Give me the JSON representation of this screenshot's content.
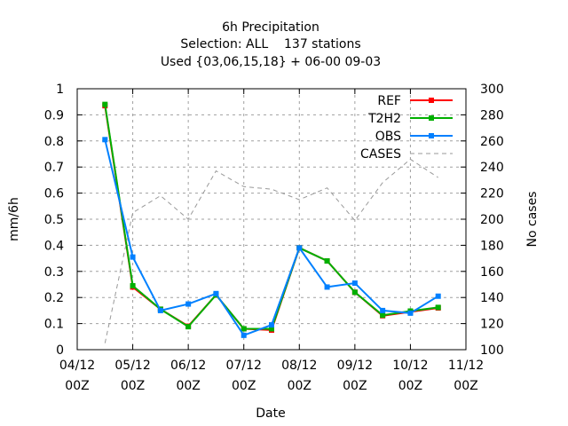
{
  "chart_data": {
    "type": "line",
    "title": [
      "6h Precipitation",
      "Selection: ALL    137 stations",
      "Used {03,06,15,18} + 06-00 09-03"
    ],
    "xlabel": "Date",
    "ylabel": "mm/6h",
    "y2label": "No cases",
    "xlim": [
      0,
      7
    ],
    "ylim": [
      0,
      1
    ],
    "y2lim": [
      100,
      300
    ],
    "grid": true,
    "legend_position": "top-right",
    "x_ticks": [
      {
        "x": 0,
        "line1": "04/12",
        "line2": "00Z"
      },
      {
        "x": 1,
        "line1": "05/12",
        "line2": "00Z"
      },
      {
        "x": 2,
        "line1": "06/12",
        "line2": "00Z"
      },
      {
        "x": 3,
        "line1": "07/12",
        "line2": "00Z"
      },
      {
        "x": 4,
        "line1": "08/12",
        "line2": "00Z"
      },
      {
        "x": 5,
        "line1": "09/12",
        "line2": "00Z"
      },
      {
        "x": 6,
        "line1": "10/12",
        "line2": "00Z"
      },
      {
        "x": 7,
        "line1": "11/12",
        "line2": "00Z"
      }
    ],
    "y_ticks": [
      "0",
      "0.1",
      "0.2",
      "0.3",
      "0.4",
      "0.5",
      "0.6",
      "0.7",
      "0.8",
      "0.9",
      "1"
    ],
    "y2_ticks": [
      "100",
      "120",
      "140",
      "160",
      "180",
      "200",
      "220",
      "240",
      "260",
      "280",
      "300"
    ],
    "x": [
      0.5,
      1.0,
      1.5,
      2.0,
      2.5,
      3.0,
      3.5,
      4.0,
      4.5,
      5.0,
      5.5,
      6.0,
      6.5
    ],
    "series": [
      {
        "name": "REF",
        "color": "#ff0000",
        "axis": "left",
        "values": [
          0.935,
          0.24,
          0.155,
          0.09,
          0.21,
          0.08,
          0.075,
          0.39,
          0.34,
          0.22,
          0.13,
          0.145,
          0.16
        ]
      },
      {
        "name": "T2H2",
        "color": "#00b000",
        "axis": "left",
        "values": [
          0.94,
          0.245,
          0.155,
          0.088,
          0.21,
          0.08,
          0.08,
          0.39,
          0.34,
          0.22,
          0.132,
          0.148,
          0.162
        ]
      },
      {
        "name": "OBS",
        "color": "#0080ff",
        "axis": "left",
        "values": [
          0.805,
          0.355,
          0.15,
          0.175,
          0.215,
          0.055,
          0.095,
          0.39,
          0.24,
          0.255,
          0.15,
          0.14,
          0.205
        ]
      },
      {
        "name": "CASES",
        "color": "#999999",
        "axis": "right",
        "dashed": true,
        "x": [
          0.5,
          1.0,
          1.5,
          2.0,
          2.5,
          3.0,
          3.5,
          4.0,
          4.5,
          5.0,
          5.5,
          6.0,
          6.5
        ],
        "values": [
          105,
          205,
          218,
          200,
          237,
          225,
          223,
          215,
          224,
          199,
          228,
          246,
          232
        ]
      }
    ]
  }
}
